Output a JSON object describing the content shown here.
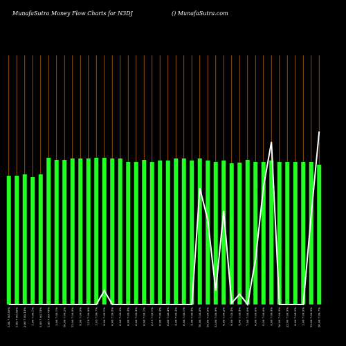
{
  "chart_data": {
    "type": "bar",
    "title": "MunafaSutra  Money Flow  Charts for N3DJ",
    "subtitle": "() MunafaSutra.com",
    "categories": [
      "1.84 7.00.30%",
      "1.83 7.00.30%",
      "2.00 7.00.14%",
      "1.90 7.00.1%",
      "1.85 7.00.74%",
      "1.95 7.00.79%",
      "2.00 7.00.1%",
      "10.00 7.00.2%",
      "12.00 7.00.8%",
      "9.00 7.00.8%",
      "1.19 7.00.8%",
      "1.05 7.00.7%",
      "9.00 7.00.1%",
      "0.00 7.00.8%",
      "0.00 7.00.3%",
      "0.00 7.00.4%",
      "0.00 7.00.4%",
      "0.00 7.00.1%",
      "0.11 7.00.1%",
      "0.00 7.00.4%",
      "0.00 7.00.4%",
      "4.00 7.00.4%",
      "6.00 7.00.1%",
      "4.00 7.00.4%",
      "10.00 7.00.8%",
      "16.00 7.00.8%",
      "13.00 7.00.9%",
      "8.00 7.00.2%",
      "9.00 7.00.4%",
      "4.00 7.00.4%",
      "7.00 7.00.6%",
      "0.00 7.00.6%",
      "0.30 7.00.6%",
      "3.00 7.00.4%",
      "10.00 7.00.5%",
      "22.00 7.00.9%",
      "8.00 7.00.2%",
      "1.00 7.00.6%",
      "12.00 7.00.5%",
      "20.00 7.00.7%"
    ],
    "series": [
      {
        "name": "Money Flow",
        "color": "#22ff22",
        "values": [
          186,
          186,
          188,
          184,
          188,
          212,
          209,
          209,
          211,
          211,
          211,
          212,
          212,
          211,
          211,
          206,
          206,
          209,
          206,
          208,
          208,
          211,
          211,
          208,
          211,
          208,
          206,
          208,
          204,
          205,
          209,
          206,
          206,
          208,
          206,
          206,
          206,
          206,
          206,
          202
        ]
      },
      {
        "name": "Line",
        "color": "#ffffff",
        "values": [
          0,
          0,
          0,
          0,
          0,
          0,
          0,
          0,
          0,
          0,
          0,
          0,
          20,
          0,
          0,
          0,
          0,
          0,
          0,
          0,
          0,
          0,
          0,
          0,
          168,
          122,
          20,
          135,
          2,
          15,
          0,
          65,
          170,
          235,
          0,
          0,
          0,
          0,
          130,
          250
        ]
      }
    ],
    "ylim": [
      0,
      360
    ],
    "grid": true,
    "grid_color": "#b8620a"
  }
}
